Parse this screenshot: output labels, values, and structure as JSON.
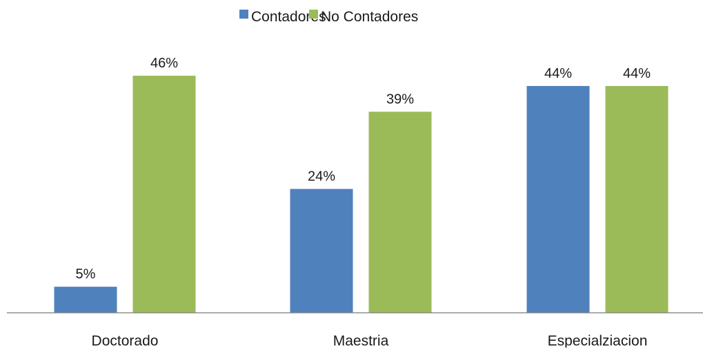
{
  "chart_data": {
    "type": "bar",
    "categories": [
      "Doctorado",
      "Maestria",
      "Especialziacion"
    ],
    "series": [
      {
        "name": "Contadores",
        "values": [
          5,
          24,
          44
        ],
        "labels": [
          "5%",
          "24%",
          "44%"
        ],
        "color": "#4F81BD"
      },
      {
        "name": "No Contadores",
        "values": [
          46,
          39,
          44
        ],
        "labels": [
          "46%",
          "39%",
          "44%"
        ],
        "color": "#9BBB59"
      }
    ],
    "unit": "%",
    "ylim": [
      0,
      50
    ],
    "legend_position": "top-center",
    "grid": false,
    "axis_color": "#8C8C8C"
  }
}
